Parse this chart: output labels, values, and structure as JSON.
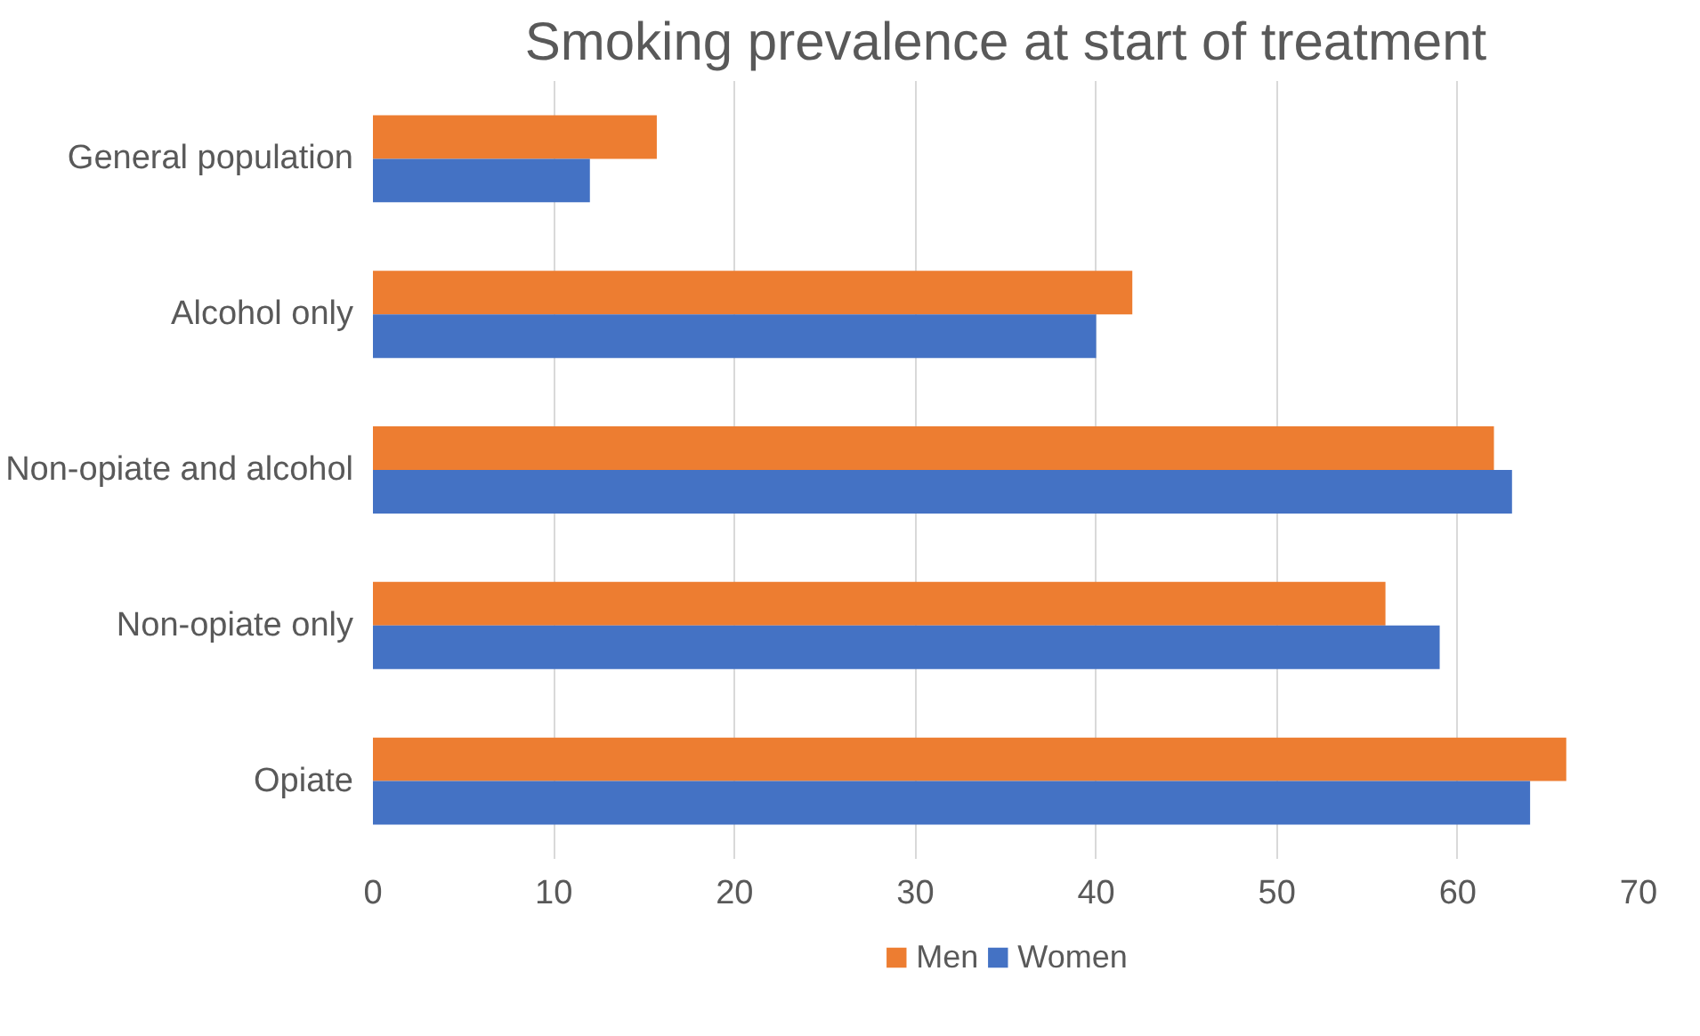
{
  "chart_data": {
    "type": "bar",
    "orientation": "horizontal",
    "title": "Smoking prevalence at start of treatment",
    "categories": [
      "General population",
      "Alcohol only",
      "Non-opiate and alcohol",
      "Non-opiate only",
      "Opiate"
    ],
    "series": [
      {
        "name": "Men",
        "color": "#ed7d31",
        "values": [
          15.7,
          42,
          62,
          56,
          66
        ]
      },
      {
        "name": "Women",
        "color": "#4472c4",
        "values": [
          12,
          40,
          63,
          59,
          64
        ]
      }
    ],
    "xlim": [
      0,
      70
    ],
    "xticks": [
      0,
      10,
      20,
      30,
      40,
      50,
      60,
      70
    ],
    "grid": "x",
    "legend": "bottom"
  }
}
